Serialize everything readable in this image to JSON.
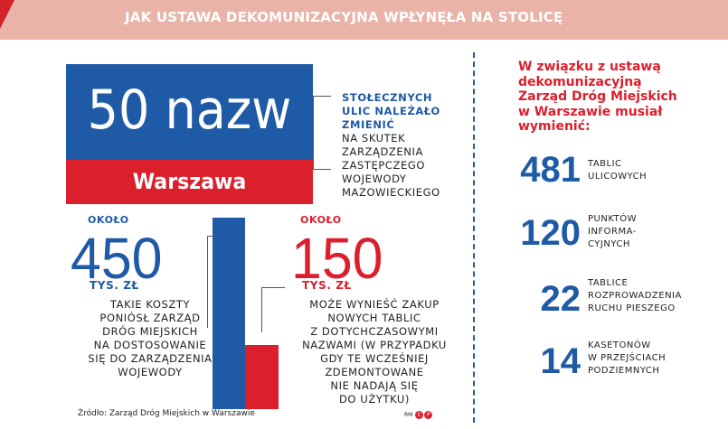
{
  "header": {
    "title": "JAK USTAWA DEKOMUNIZACYJNA WPŁYNĘŁA NA STOLICĘ"
  },
  "sign": {
    "main": "50 nazw",
    "city": "Warszawa",
    "desc_bold": [
      "STOŁECZNYCH",
      "ULIC NALEŻAŁO",
      "ZMIENIĆ"
    ],
    "desc": [
      "NA SKUTEK",
      "ZARZĄDZENIA",
      "ZASTĘPCZEGO",
      "WOJEWODY",
      "MAZOWIECKIEGO"
    ]
  },
  "chart_data": {
    "type": "bar",
    "categories": [
      "TAKIE KOSZTY PONIÓSŁ ZARZĄD DRÓG MIEJSKICH NA DOSTOSOWANIE SIĘ DO ZARZĄDZENIA WOJEWODY",
      "MOŻE WYNIEŚĆ ZAKUP NOWYCH TABLIC Z DOTYCHCZASOWYMI NAZWAMI"
    ],
    "values": [
      450,
      150
    ],
    "colors": [
      "#1f5aa6",
      "#dc1f2c"
    ]
  },
  "left": {
    "pre": "OKOŁO",
    "value": "450",
    "unit": "TYS. ZŁ",
    "desc": [
      "TAKIE KOSZTY",
      "PONIÓSŁ ZARZĄD",
      "DRÓG MIEJSKICH",
      "NA DOSTOSOWANIE",
      "SIĘ DO ZARZĄDZENIA",
      "WOJEWODY"
    ]
  },
  "right": {
    "pre": "OKOŁO",
    "value": "150",
    "unit": "TYS. ZŁ",
    "desc": [
      "MOŻE WYNIEŚĆ ZAKUP",
      "NOWYCH TABLIC",
      "Z DOTYCHCZASOWYMI",
      "NAZWAMI (W PRZYPADKU",
      "GDY TE WCZEŚNIEJ",
      "ZDEMONTOWANE",
      "NIE NADAJĄ SIĘ",
      "DO UŻYTKU)"
    ]
  },
  "intro": [
    "W związku z ustawą",
    "dekomunizacyjną",
    "Zarząd Dróg Miejskich",
    "w Warszawie musiał",
    "wymienić:"
  ],
  "stats": [
    {
      "value": "481",
      "label": [
        "TABLIC",
        "ULICOWYCH"
      ]
    },
    {
      "value": "120",
      "label": [
        "PUNKTÓW",
        "INFORMA-",
        "CYJNYCH"
      ]
    },
    {
      "value": "22",
      "label": [
        "TABLICE",
        "ROZPROWADZENIA",
        "RUCHU PIESZEGO"
      ]
    },
    {
      "value": "14",
      "label": [
        "KASETONÓW",
        "W PRZEJŚCIACH",
        "PODZIEMNYCH"
      ]
    }
  ],
  "source": "Źródło: Zarząd Dróg Miejskich w Warszawie",
  "credits": {
    "initials": "RM",
    "marks": [
      "C",
      "P"
    ]
  },
  "colors": {
    "accent_red": "#dc1f2c",
    "accent_blue": "#1f5aa6",
    "header_bg": "#e9b4a7"
  }
}
